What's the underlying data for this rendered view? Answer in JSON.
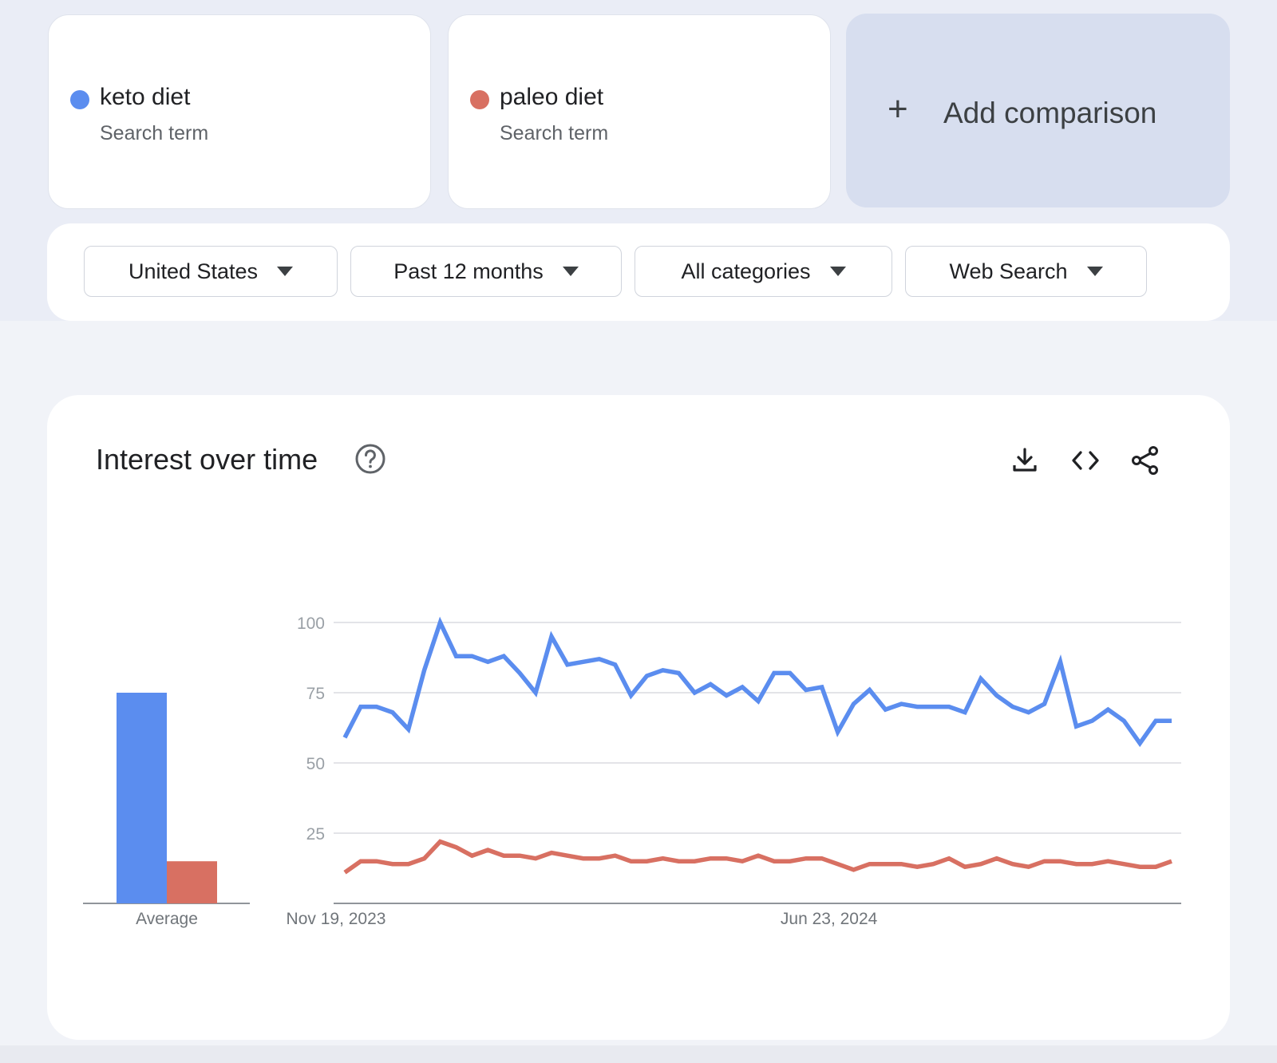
{
  "terms": [
    {
      "name": "keto diet",
      "sub": "Search term",
      "color": "#5b8def"
    },
    {
      "name": "paleo diet",
      "sub": "Search term",
      "color": "#d87062"
    }
  ],
  "add_comparison": {
    "plus": "+",
    "label": "Add comparison"
  },
  "filters": {
    "region": "United States",
    "time": "Past 12 months",
    "category": "All categories",
    "search_type": "Web Search"
  },
  "panel": {
    "title": "Interest over time",
    "icons": [
      "help-icon",
      "download-icon",
      "embed-icon",
      "share-icon"
    ]
  },
  "chart_data": [
    {
      "type": "bar",
      "categories": [
        "Average"
      ],
      "series": [
        {
          "name": "keto diet",
          "color": "#5b8def",
          "values": [
            75
          ]
        },
        {
          "name": "paleo diet",
          "color": "#d87062",
          "values": [
            15
          ]
        }
      ],
      "ylim": [
        0,
        100
      ]
    },
    {
      "type": "line",
      "x_tick_labels": [
        "Nov 19, 2023",
        "Jun 23, 2024"
      ],
      "x_tick_index": [
        0,
        31
      ],
      "y_ticks": [
        25,
        50,
        75,
        100
      ],
      "ylim": [
        0,
        100
      ],
      "grid": true,
      "series": [
        {
          "name": "keto diet",
          "color": "#5b8def",
          "values": [
            59,
            70,
            70,
            68,
            62,
            83,
            100,
            88,
            88,
            86,
            88,
            82,
            75,
            95,
            85,
            86,
            87,
            85,
            74,
            81,
            83,
            82,
            75,
            78,
            74,
            77,
            72,
            82,
            82,
            76,
            77,
            61,
            71,
            76,
            69,
            71,
            70,
            70,
            70,
            68,
            80,
            74,
            70,
            68,
            71,
            86,
            63,
            65,
            69,
            65,
            57,
            65,
            65
          ]
        },
        {
          "name": "paleo diet",
          "color": "#d87062",
          "values": [
            11,
            15,
            15,
            14,
            14,
            16,
            22,
            20,
            17,
            19,
            17,
            17,
            16,
            18,
            17,
            16,
            16,
            17,
            15,
            15,
            16,
            15,
            15,
            16,
            16,
            15,
            17,
            15,
            15,
            16,
            16,
            14,
            12,
            14,
            14,
            14,
            13,
            14,
            16,
            13,
            14,
            16,
            14,
            13,
            15,
            15,
            14,
            14,
            15,
            14,
            13,
            13,
            15
          ]
        }
      ]
    }
  ]
}
